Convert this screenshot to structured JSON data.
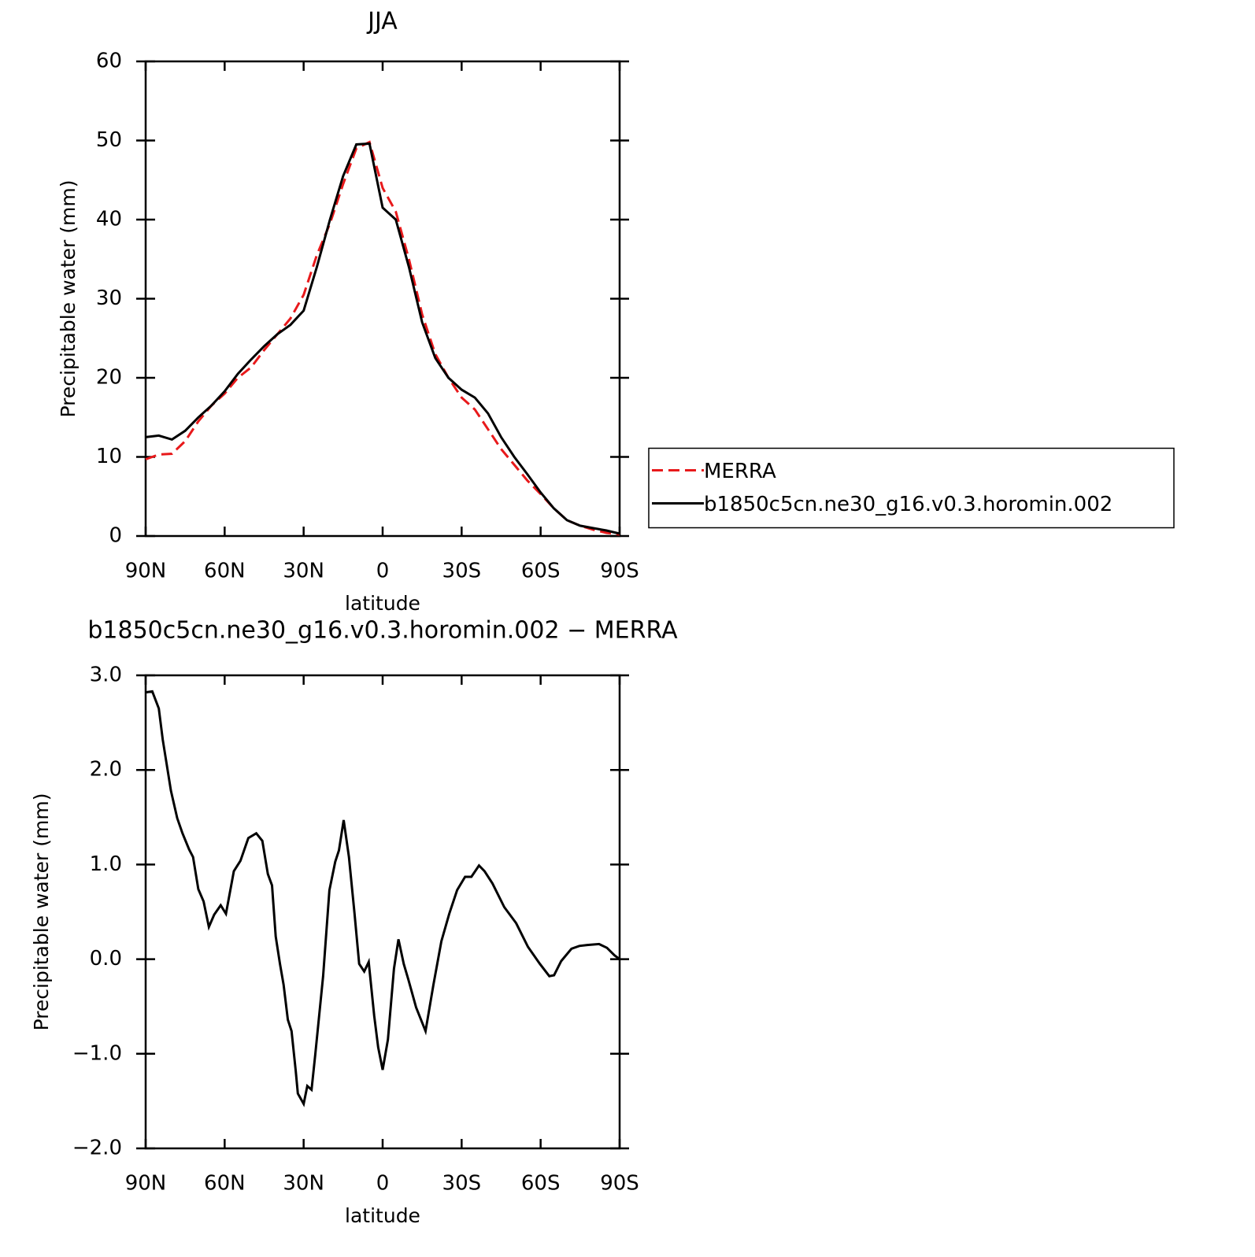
{
  "chart_data": [
    {
      "type": "line",
      "title": "JJA",
      "xlabel": "latitude",
      "ylabel": "Precipitable water (mm)",
      "xlim": [
        90,
        -90
      ],
      "ylim": [
        0,
        60
      ],
      "xticks": [
        {
          "value": 90,
          "label": "90N"
        },
        {
          "value": 60,
          "label": "60N"
        },
        {
          "value": 30,
          "label": "30N"
        },
        0,
        {
          "value": -30,
          "label": "30S"
        },
        {
          "value": -60,
          "label": "60S"
        },
        {
          "value": -90,
          "label": "90S"
        }
      ],
      "yticks": [
        0,
        10,
        20,
        30,
        40,
        50,
        60
      ],
      "legend": "right",
      "x": [
        90,
        85,
        80,
        75,
        70,
        65,
        60,
        55,
        50,
        45,
        40,
        35,
        30,
        25,
        20,
        15,
        10,
        5,
        0,
        -5,
        -10,
        -15,
        -20,
        -25,
        -30,
        -35,
        -40,
        -45,
        -50,
        -55,
        -60,
        -65,
        -70,
        -75,
        -80,
        -85,
        -90
      ],
      "series": [
        {
          "name": "MERRA",
          "color": "#e8191b",
          "linestyle": "dashed",
          "values": [
            9.7,
            10.3,
            10.4,
            12,
            14.5,
            16.5,
            18,
            20,
            21.3,
            23.5,
            25.5,
            27.5,
            30.5,
            35.5,
            39.5,
            44.5,
            49,
            49.8,
            44,
            41,
            35,
            28,
            23,
            20,
            17.5,
            16,
            13.5,
            11,
            9,
            7,
            5.3,
            3.5,
            2,
            1.3,
            0.8,
            0.4,
            0.2
          ]
        },
        {
          "name": "b1850c5cn.ne30_g16.v0.3.horomin.002",
          "color": "#000000",
          "linestyle": "solid",
          "values": [
            12.5,
            12.7,
            12.2,
            13.3,
            15,
            16.5,
            18.3,
            20.5,
            22.3,
            24,
            25.5,
            26.7,
            28.5,
            34,
            40,
            45.5,
            49.5,
            49.6,
            41.5,
            40,
            34,
            27,
            22.5,
            20,
            18.5,
            17.5,
            15.5,
            12.5,
            10,
            7.8,
            5.5,
            3.5,
            2,
            1.3,
            1,
            0.7,
            0.3
          ]
        }
      ]
    },
    {
      "type": "line",
      "title": "b1850c5cn.ne30_g16.v0.3.horomin.002 − MERRA",
      "xlabel": "latitude",
      "ylabel": "Precipitable water (mm)",
      "xlim": [
        90,
        -90
      ],
      "ylim": [
        -2,
        3
      ],
      "xticks": [
        {
          "value": 90,
          "label": "90N"
        },
        {
          "value": 60,
          "label": "60N"
        },
        {
          "value": 30,
          "label": "30N"
        },
        0,
        {
          "value": -30,
          "label": "30S"
        },
        {
          "value": -60,
          "label": "60S"
        },
        {
          "value": -90,
          "label": "90S"
        }
      ],
      "yticks": [
        {
          "value": -2,
          "label": "−2.0"
        },
        {
          "value": -1,
          "label": "−1.0"
        },
        {
          "value": 0,
          "label": "0.0"
        },
        {
          "value": 1,
          "label": "1.0"
        },
        {
          "value": 2,
          "label": "2.0"
        },
        {
          "value": 3,
          "label": "3.0"
        }
      ],
      "x": [
        90,
        87.5,
        85,
        83.5,
        80.4,
        78,
        76,
        73.5,
        72,
        70,
        68,
        66,
        64,
        61.5,
        59.5,
        56.5,
        54,
        51,
        48,
        45.7,
        43.6,
        42,
        40.6,
        39,
        37.6,
        36,
        34.6,
        33,
        32.2,
        30,
        28.6,
        27,
        25.6,
        22.6,
        20.2,
        18,
        16.6,
        14.8,
        12.8,
        10.7,
        8.9,
        7,
        5.3,
        3.2,
        1.7,
        0,
        -2,
        -4.3,
        -6,
        -8,
        -9.8,
        -12.7,
        -16.3,
        -19.3,
        -22.3,
        -25.3,
        -28.3,
        -31.3,
        -33.7,
        -36.6,
        -38.7,
        -41.7,
        -46.2,
        -50.7,
        -55.2,
        -59.7,
        -63.3,
        -65.1,
        -67.8,
        -71.7,
        -74.7,
        -77.7,
        -82.2,
        -85.2,
        -88.1,
        -90
      ],
      "series": [
        {
          "color": "#000000",
          "linestyle": "solid",
          "values": [
            2.82,
            2.83,
            2.65,
            2.32,
            1.78,
            1.49,
            1.33,
            1.16,
            1.08,
            0.74,
            0.61,
            0.34,
            0.47,
            0.57,
            0.48,
            0.93,
            1.04,
            1.28,
            1.33,
            1.25,
            0.9,
            0.78,
            0.24,
            -0.05,
            -0.27,
            -0.64,
            -0.76,
            -1.18,
            -1.42,
            -1.53,
            -1.34,
            -1.38,
            -1.01,
            -0.18,
            0.73,
            1.03,
            1.15,
            1.47,
            1.08,
            0.49,
            -0.05,
            -0.13,
            -0.03,
            -0.6,
            -0.93,
            -1.17,
            -0.85,
            -0.1,
            0.21,
            -0.05,
            -0.22,
            -0.51,
            -0.76,
            -0.27,
            0.19,
            0.48,
            0.73,
            0.87,
            0.87,
            0.99,
            0.93,
            0.8,
            0.55,
            0.38,
            0.13,
            -0.05,
            -0.18,
            -0.17,
            -0.02,
            0.11,
            0.14,
            0.15,
            0.16,
            0.12,
            0.04,
            0
          ]
        }
      ]
    }
  ]
}
